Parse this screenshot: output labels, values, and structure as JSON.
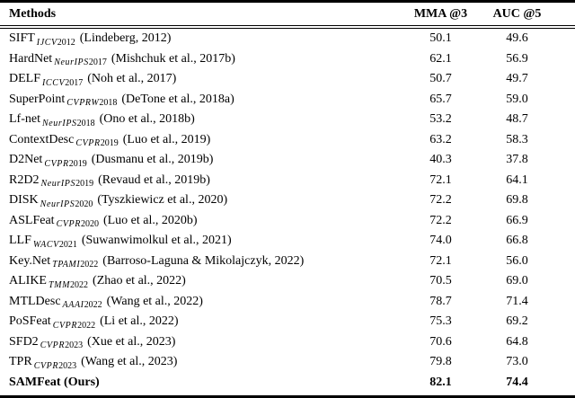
{
  "table": {
    "header": {
      "methods": "Methods",
      "mma": "MMA @3",
      "auc": "AUC @5"
    },
    "rows": [
      {
        "method": "SIFT",
        "venue": "IJCV",
        "year": "2012",
        "citation": "(Lindeberg, 2012)",
        "mma": "50.1",
        "auc": "49.6",
        "bold": false
      },
      {
        "method": "HardNet",
        "venue": "NeurIPS",
        "year": "2017",
        "citation": "(Mishchuk et al., 2017b)",
        "mma": "62.1",
        "auc": "56.9",
        "bold": false
      },
      {
        "method": "DELF",
        "venue": "ICCV",
        "year": "2017",
        "citation": "(Noh et al., 2017)",
        "mma": "50.7",
        "auc": "49.7",
        "bold": false
      },
      {
        "method": "SuperPoint",
        "venue": "CVPRW",
        "year": "2018",
        "citation": "(DeTone et al., 2018a)",
        "mma": "65.7",
        "auc": "59.0",
        "bold": false
      },
      {
        "method": "Lf-net",
        "venue": "NeurIPS",
        "year": "2018",
        "citation": "(Ono et al., 2018b)",
        "mma": "53.2",
        "auc": "48.7",
        "bold": false
      },
      {
        "method": "ContextDesc",
        "venue": "CVPR",
        "year": "2019",
        "citation": "(Luo et al., 2019)",
        "mma": "63.2",
        "auc": "58.3",
        "bold": false
      },
      {
        "method": "D2Net",
        "venue": "CVPR",
        "year": "2019",
        "citation": "(Dusmanu et al., 2019b)",
        "mma": "40.3",
        "auc": "37.8",
        "bold": false
      },
      {
        "method": "R2D2",
        "venue": "NeurIPS",
        "year": "2019",
        "citation": "(Revaud et al., 2019b)",
        "mma": "72.1",
        "auc": "64.1",
        "bold": false
      },
      {
        "method": "DISK",
        "venue": "NeurIPS",
        "year": "2020",
        "citation": "(Tyszkiewicz et al., 2020)",
        "mma": "72.2",
        "auc": "69.8",
        "bold": false
      },
      {
        "method": "ASLFeat",
        "venue": "CVPR",
        "year": "2020",
        "citation": "(Luo et al., 2020b)",
        "mma": "72.2",
        "auc": "66.9",
        "bold": false
      },
      {
        "method": "LLF",
        "venue": "WACV",
        "year": "2021",
        "citation": "(Suwanwimolkul et al., 2021)",
        "mma": "74.0",
        "auc": "66.8",
        "bold": false
      },
      {
        "method": "Key.Net",
        "venue": "TPAMI",
        "year": "2022",
        "citation": "(Barroso-Laguna & Mikolajczyk, 2022)",
        "mma": "72.1",
        "auc": "56.0",
        "bold": false
      },
      {
        "method": "ALIKE",
        "venue": "TMM",
        "year": "2022",
        "citation": "(Zhao et al., 2022)",
        "mma": "70.5",
        "auc": "69.0",
        "bold": false
      },
      {
        "method": "MTLDesc",
        "venue": "AAAI",
        "year": "2022",
        "citation": "(Wang et al., 2022)",
        "mma": "78.7",
        "auc": "71.4",
        "bold": false
      },
      {
        "method": "PoSFeat",
        "venue": "CVPR",
        "year": "2022",
        "citation": "(Li et al., 2022)",
        "mma": "75.3",
        "auc": "69.2",
        "bold": false
      },
      {
        "method": "SFD2",
        "venue": "CVPR",
        "year": "2023",
        "citation": "(Xue et al., 2023)",
        "mma": "70.6",
        "auc": "64.8",
        "bold": false
      },
      {
        "method": "TPR",
        "venue": "CVPR",
        "year": "2023",
        "citation": "(Wang et al., 2023)",
        "mma": "79.8",
        "auc": "73.0",
        "bold": false
      },
      {
        "method": "SAMFeat (Ours)",
        "venue": "",
        "year": "",
        "citation": "",
        "mma": "82.1",
        "auc": "74.4",
        "bold": true
      }
    ]
  },
  "colors": {
    "text": "#000000",
    "background": "#ffffff",
    "rule": "#000000"
  }
}
